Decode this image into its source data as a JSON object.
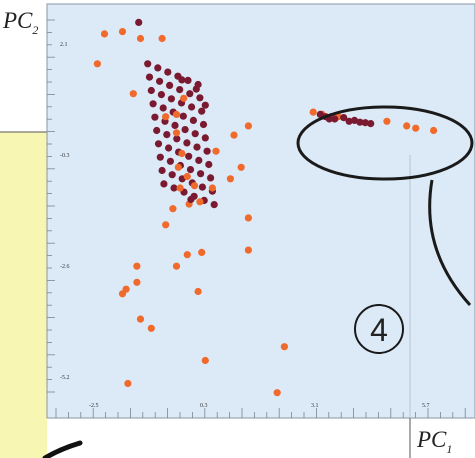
{
  "chart_data": {
    "type": "scatter",
    "xlabel": "PC",
    "xlabel_sub": "1",
    "ylabel": "PC",
    "ylabel_sub": "2",
    "x_ticks": [
      "-2.5",
      "0.3",
      "3.1",
      "5.7"
    ],
    "y_ticks": [
      "2.1",
      "-0.3",
      "-2.6",
      "-5.2"
    ],
    "xlim": [
      -4.0,
      7.9
    ],
    "ylim": [
      -6.25,
      2.75
    ],
    "grid": false,
    "colors": {
      "plot_bg": "#dce9f6",
      "frame": "#8a96a6",
      "orange": "#f06a2c",
      "dark": "#7a1a30",
      "backdrop": "#f7f7b3",
      "ellipse": "#1a1a1a"
    },
    "series": [
      {
        "color": "orange",
        "points": [
          [
            -2.4,
            2.1
          ],
          [
            -1.9,
            2.15
          ],
          [
            -1.4,
            2.0
          ],
          [
            -0.8,
            2.0
          ],
          [
            -2.6,
            1.45
          ],
          [
            -1.6,
            0.8
          ],
          [
            -0.2,
            0.7
          ],
          [
            -0.4,
            0.35
          ],
          [
            -0.7,
            0.3
          ],
          [
            1.6,
            0.1
          ],
          [
            1.2,
            -0.1
          ],
          [
            -0.4,
            -0.05
          ],
          [
            -0.25,
            -0.5
          ],
          [
            0.7,
            -0.45
          ],
          [
            -0.35,
            -0.8
          ],
          [
            -0.1,
            -1.0
          ],
          [
            1.4,
            -0.8
          ],
          [
            -0.3,
            -1.25
          ],
          [
            0.1,
            -1.2
          ],
          [
            0.6,
            -1.25
          ],
          [
            -0.05,
            -1.6
          ],
          [
            0.25,
            -1.55
          ],
          [
            1.1,
            -1.05
          ],
          [
            -0.5,
            -1.7
          ],
          [
            1.6,
            -1.9
          ],
          [
            -0.7,
            -2.05
          ],
          [
            1.6,
            -2.6
          ],
          [
            -0.1,
            -2.7
          ],
          [
            0.3,
            -2.65
          ],
          [
            -1.5,
            -2.95
          ],
          [
            -0.4,
            -2.95
          ],
          [
            -1.5,
            -3.3
          ],
          [
            -1.8,
            -3.45
          ],
          [
            -1.9,
            -3.55
          ],
          [
            0.2,
            -3.5
          ],
          [
            -1.4,
            -4.1
          ],
          [
            -1.1,
            -4.3
          ],
          [
            2.6,
            -4.7
          ],
          [
            0.4,
            -5.0
          ],
          [
            -1.75,
            -5.5
          ],
          [
            2.4,
            -5.7
          ],
          [
            3.4,
            0.4
          ],
          [
            3.65,
            0.35
          ],
          [
            3.9,
            0.3
          ],
          [
            4.1,
            0.3
          ],
          [
            5.45,
            0.2
          ],
          [
            6.0,
            0.1
          ],
          [
            6.25,
            0.05
          ],
          [
            6.75,
            0.0
          ]
        ]
      },
      {
        "color": "dark",
        "points": [
          [
            -1.45,
            2.35
          ],
          [
            -0.25,
            1.1
          ],
          [
            0.15,
            0.9
          ],
          [
            0.4,
            0.55
          ],
          [
            0.0,
            -1.5
          ],
          [
            3.6,
            0.35
          ],
          [
            3.75,
            0.3
          ],
          [
            3.85,
            0.25
          ],
          [
            4.0,
            0.25
          ],
          [
            4.25,
            0.28
          ],
          [
            4.4,
            0.2
          ],
          [
            4.55,
            0.22
          ],
          [
            4.7,
            0.18
          ],
          [
            4.85,
            0.17
          ],
          [
            5.0,
            0.15
          ]
        ]
      }
    ],
    "annotations": {
      "badge_label": "4"
    }
  }
}
